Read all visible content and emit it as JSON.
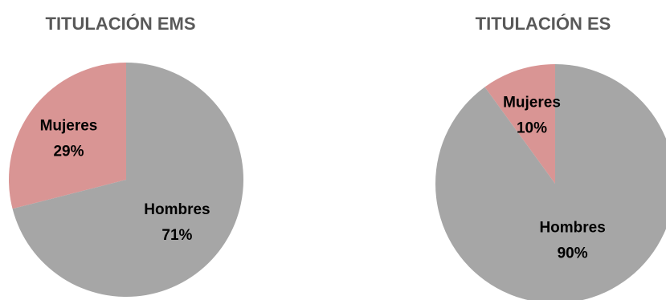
{
  "chart_data": [
    {
      "type": "pie",
      "title": "TITULACIÓN EMS",
      "categories": [
        "Hombres",
        "Mujeres"
      ],
      "values": [
        71,
        29
      ],
      "labels": [
        "71%",
        "29%"
      ],
      "colors": [
        "#a6a6a6",
        "#d99594"
      ],
      "start": "12 o'clock",
      "direction": "clockwise"
    },
    {
      "type": "pie",
      "title": "TITULACIÓN ES",
      "categories": [
        "Hombres",
        "Mujeres"
      ],
      "values": [
        90,
        10
      ],
      "labels": [
        "90%",
        "10%"
      ],
      "colors": [
        "#a6a6a6",
        "#d99594"
      ],
      "start": "12 o'clock",
      "direction": "clockwise"
    }
  ]
}
